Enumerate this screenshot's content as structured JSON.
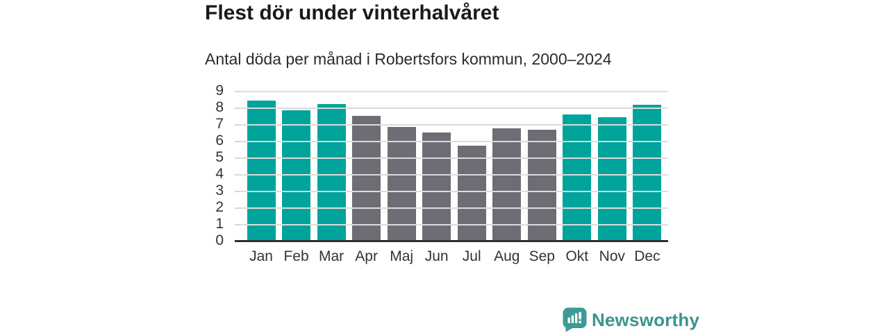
{
  "header": {
    "title": "Flest dör under vinterhalvåret",
    "subtitle": "Antal döda per månad i Robertsfors kommun, 2000–2024"
  },
  "chart_data": {
    "type": "bar",
    "title": "Flest dör under vinterhalvåret",
    "subtitle": "Antal döda per månad i Robertsfors kommun, 2000–2024",
    "categories": [
      "Jan",
      "Feb",
      "Mar",
      "Apr",
      "Maj",
      "Jun",
      "Jul",
      "Aug",
      "Sep",
      "Okt",
      "Nov",
      "Dec"
    ],
    "values": [
      8.4,
      7.85,
      8.2,
      7.5,
      6.85,
      6.5,
      5.7,
      6.75,
      6.65,
      7.6,
      7.4,
      8.15
    ],
    "highlighted": [
      true,
      true,
      true,
      false,
      false,
      false,
      false,
      false,
      false,
      true,
      true,
      true
    ],
    "xlabel": "",
    "ylabel": "",
    "ylim": [
      0,
      9
    ],
    "yticks": [
      0,
      1,
      2,
      3,
      4,
      5,
      6,
      7,
      8,
      9
    ],
    "grid": true,
    "legend": "none",
    "colors": {
      "highlight_bar": "#00a49b",
      "default_bar": "#6e6c74",
      "gridline": "#dcdcdc",
      "axis_line": "#2f2f2f",
      "tick_label": "#333333"
    }
  },
  "footer": {
    "brand": "Newsworthy",
    "brand_color": "#39958f",
    "logo_color": "#3e9a94"
  }
}
